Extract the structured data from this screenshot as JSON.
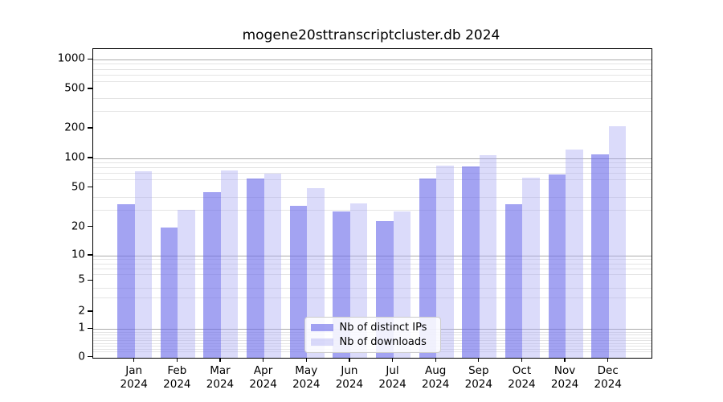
{
  "chart_data": {
    "type": "bar",
    "title": "mogene20sttranscriptcluster.db 2024",
    "categories": [
      "Jan",
      "Feb",
      "Mar",
      "Apr",
      "May",
      "Jun",
      "Jul",
      "Aug",
      "Sep",
      "Oct",
      "Nov",
      "Dec"
    ],
    "year_label": "2024",
    "series": [
      {
        "name": "Nb of distinct IPs",
        "color": "rgba(107,107,234,0.62)",
        "values": [
          34,
          20,
          45,
          62,
          33,
          29,
          23,
          62,
          83,
          34,
          68,
          110
        ]
      },
      {
        "name": "Nb of downloads",
        "color": "rgba(169,169,243,0.42)",
        "values": [
          74,
          30,
          76,
          70,
          50,
          35,
          29,
          85,
          107,
          63,
          123,
          210
        ]
      }
    ],
    "xlabel": "",
    "ylabel": "",
    "y_axis": {
      "scale": "log-like",
      "ylim": [
        0,
        1300
      ],
      "ticks": [
        {
          "value": 0,
          "frac": 0
        },
        {
          "value": 1,
          "frac": 0.0913
        },
        {
          "value": 2,
          "frac": 0.1477
        },
        {
          "value": 5,
          "frac": 0.2478
        },
        {
          "value": 10,
          "frac": 0.3295
        },
        {
          "value": 20,
          "frac": 0.4216
        },
        {
          "value": 50,
          "frac": 0.55
        },
        {
          "value": 100,
          "frac": 0.6452
        },
        {
          "value": 200,
          "frac": 0.7417
        },
        {
          "value": 500,
          "frac": 0.8696
        },
        {
          "value": 1000,
          "frac": 0.9653
        }
      ],
      "major_gridline_values": [
        1,
        10,
        100,
        1000
      ],
      "minor_gridline_values": [
        0.2,
        0.3,
        0.4,
        0.5,
        0.6,
        0.7,
        0.8,
        0.9,
        3,
        4,
        6,
        7,
        8,
        9,
        30,
        40,
        60,
        70,
        80,
        90,
        300,
        400,
        600,
        700,
        800,
        900
      ]
    },
    "grid": true,
    "legend_position": "lower center",
    "colors": {
      "major_grid": "#ababab",
      "minor_grid": "#e4e4e4",
      "axis": "#000000",
      "background": "#ffffff"
    }
  }
}
